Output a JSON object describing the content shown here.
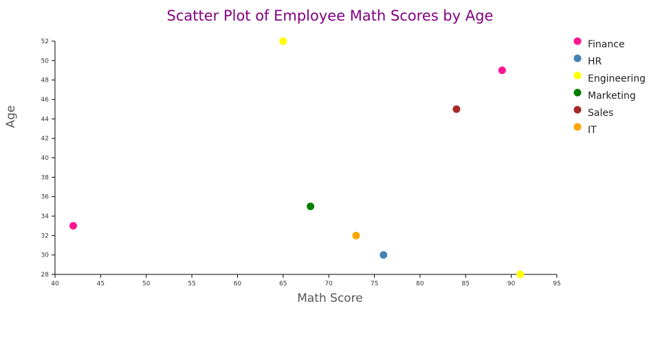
{
  "chart_data": {
    "type": "scatter",
    "title": "Scatter Plot of Employee Math Scores by Age",
    "xlabel": "Math Score",
    "ylabel": "Age",
    "xlim": [
      40,
      95
    ],
    "ylim": [
      28,
      52
    ],
    "x_ticks": [
      "40",
      "45",
      "50",
      "55",
      "60",
      "65",
      "70",
      "75",
      "80",
      "85",
      "90",
      "95"
    ],
    "y_ticks": [
      "28",
      "30",
      "32",
      "34",
      "36",
      "38",
      "40",
      "42",
      "44",
      "46",
      "48",
      "50",
      "52"
    ],
    "grid": false,
    "legend_position": "right",
    "series": [
      {
        "name": "Finance",
        "color": "#ff1493",
        "points": [
          {
            "x": 42,
            "y": 33
          },
          {
            "x": 89,
            "y": 49
          }
        ]
      },
      {
        "name": "HR",
        "color": "#4682b4",
        "points": [
          {
            "x": 76,
            "y": 30
          }
        ]
      },
      {
        "name": "Engineering",
        "color": "#ffff00",
        "points": [
          {
            "x": 65,
            "y": 52
          },
          {
            "x": 91,
            "y": 28
          }
        ]
      },
      {
        "name": "Marketing",
        "color": "#008000",
        "points": [
          {
            "x": 68,
            "y": 35
          }
        ]
      },
      {
        "name": "Sales",
        "color": "#a52a2a",
        "points": [
          {
            "x": 84,
            "y": 45
          }
        ]
      },
      {
        "name": "IT",
        "color": "#ffa500",
        "points": [
          {
            "x": 73,
            "y": 32
          }
        ]
      }
    ],
    "colors": {
      "title": "#800080",
      "axis_label": "#555555"
    }
  }
}
